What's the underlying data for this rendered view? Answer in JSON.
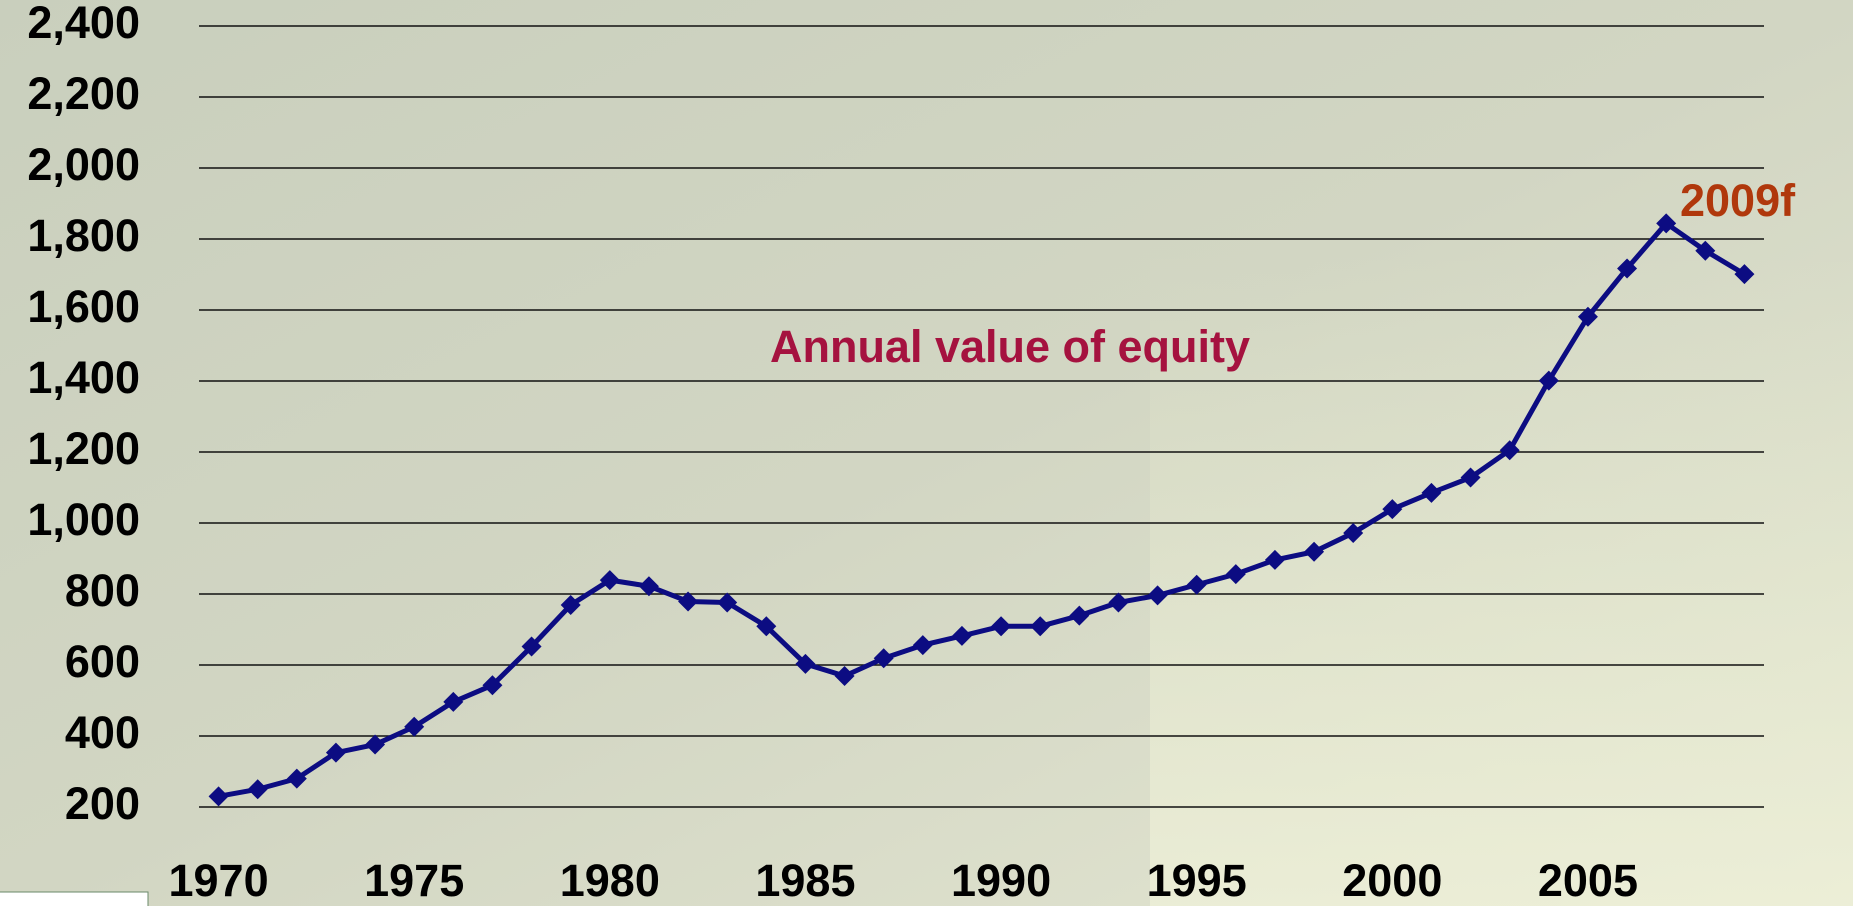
{
  "chart_data": {
    "type": "line",
    "annotations": [
      "Annual value of equity",
      "2009f"
    ],
    "x": [
      1970,
      1971,
      1972,
      1973,
      1974,
      1975,
      1976,
      1977,
      1978,
      1979,
      1980,
      1981,
      1982,
      1983,
      1984,
      1985,
      1986,
      1987,
      1988,
      1989,
      1990,
      1991,
      1992,
      1993,
      1994,
      1995,
      1996,
      1997,
      1998,
      1999,
      2000,
      2001,
      2002,
      2003,
      2004,
      2005,
      2006,
      2007,
      2008,
      2009
    ],
    "values": [
      230,
      250,
      280,
      353,
      376,
      426,
      496,
      543,
      652,
      769,
      839,
      822,
      779,
      776,
      709,
      603,
      569,
      619,
      656,
      682,
      709,
      709,
      739,
      776,
      796,
      826,
      856,
      896,
      919,
      972,
      1039,
      1085,
      1128,
      1205,
      1401,
      1581,
      1717,
      1844,
      1767,
      1701
    ],
    "color": "#0c0c82",
    "xlim": [
      1969.5,
      2009.5
    ],
    "xticks": [
      1970,
      1975,
      1980,
      1985,
      1990,
      1995,
      2000,
      2005
    ],
    "ylim": [
      200,
      2400
    ],
    "yticks": [
      {
        "value": 200,
        "label": "200"
      },
      {
        "value": 400,
        "label": "400"
      },
      {
        "value": 600,
        "label": "600"
      },
      {
        "value": 800,
        "label": "800"
      },
      {
        "value": 1000,
        "label": "1,000"
      },
      {
        "value": 1200,
        "label": "1,200"
      },
      {
        "value": 1400,
        "label": "1,400"
      },
      {
        "value": 1600,
        "label": "1,600"
      },
      {
        "value": 1800,
        "label": "1,800"
      },
      {
        "value": 2000,
        "label": "2,000"
      },
      {
        "value": 2200,
        "label": "2,200"
      },
      {
        "value": 2400,
        "label": "2,400"
      }
    ],
    "grid": true
  }
}
